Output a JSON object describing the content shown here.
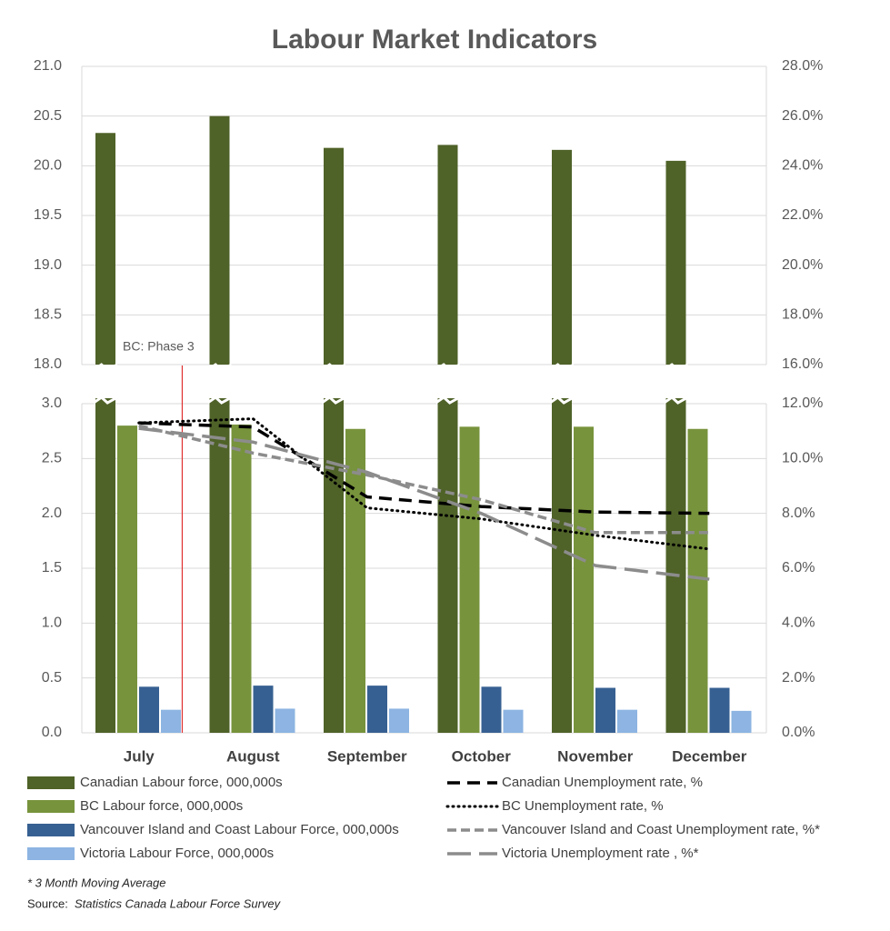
{
  "chart_data": {
    "type": "bar",
    "title": "Labour Market Indicators",
    "annotation": "BC: Phase 3",
    "note": "* 3 Month Moving Average",
    "source_label": "Source:",
    "source": "Statistics Canada Labour Force Survey",
    "categories": [
      "July",
      "August",
      "September",
      "October",
      "November",
      "December"
    ],
    "ylim_upper": [
      18,
      21
    ],
    "yticks_upper": [
      {
        "value": 18,
        "label": "18.0"
      },
      18.5,
      {
        "value": 19,
        "label": "19.0"
      },
      19.5,
      {
        "value": 20,
        "label": "20.0"
      },
      20.5,
      {
        "value": 21,
        "label": "21.0"
      }
    ],
    "y2lim_upper": [
      16,
      28
    ],
    "y2ticks_upper": [
      {
        "value": 16,
        "label": "16.0%"
      },
      {
        "value": 18,
        "label": "18.0%"
      },
      {
        "value": 20,
        "label": "20.0%"
      },
      {
        "value": 22,
        "label": "22.0%"
      },
      {
        "value": 24,
        "label": "24.0%"
      },
      {
        "value": 26,
        "label": "26.0%"
      },
      {
        "value": 28,
        "label": "28.0%"
      }
    ],
    "ylim": [
      0,
      3
    ],
    "yticks": [
      {
        "value": 0,
        "label": "0.0"
      },
      0.5,
      {
        "value": 1,
        "label": "1.0"
      },
      1.5,
      {
        "value": 2,
        "label": "2.0"
      },
      2.5,
      {
        "value": 3,
        "label": "3.0"
      }
    ],
    "y2lim": [
      0,
      12
    ],
    "y2ticks": [
      {
        "value": 0,
        "label": "0.0%"
      },
      {
        "value": 2,
        "label": "2.0%"
      },
      {
        "value": 4,
        "label": "4.0%"
      },
      {
        "value": 6,
        "label": "6.0%"
      },
      {
        "value": 8,
        "label": "8.0%"
      },
      {
        "value": 10,
        "label": "10.0%"
      },
      {
        "value": 12,
        "label": "12.0%"
      }
    ],
    "grid": true,
    "series": [
      {
        "name": "Canadian Labour force, 000,000s",
        "type": "bar",
        "color": "#4f6228",
        "values": [
          20.33,
          20.5,
          20.18,
          20.21,
          20.16,
          20.05
        ]
      },
      {
        "name": "BC Labour force, 000,000s",
        "type": "bar",
        "color": "#77933c",
        "values": [
          2.8,
          2.81,
          2.77,
          2.79,
          2.79,
          2.77
        ]
      },
      {
        "name": "Vancouver Island and Coast Labour Force, 000,000s",
        "type": "bar",
        "color": "#376092",
        "values": [
          0.42,
          0.43,
          0.43,
          0.42,
          0.41,
          0.41
        ]
      },
      {
        "name": "Victoria Labour Force, 000,000s",
        "type": "bar",
        "color": "#8db4e2",
        "values": [
          0.21,
          0.22,
          0.22,
          0.21,
          0.21,
          0.2
        ]
      },
      {
        "name": "Canadian Unemployment rate, %",
        "type": "line",
        "axis": "y2",
        "style": "dashed",
        "color": "#000000",
        "values": [
          11.3,
          11.15,
          8.6,
          8.25,
          8.05,
          8.0
        ]
      },
      {
        "name": "BC Unemployment rate, %",
        "type": "line",
        "axis": "y2",
        "style": "dotted",
        "color": "#000000",
        "values": [
          11.3,
          11.45,
          8.2,
          7.8,
          7.2,
          6.7
        ]
      },
      {
        "name": "Vancouver Island and Coast Unemployment rate, %*",
        "type": "line",
        "axis": "y2",
        "style": "short-dash",
        "color": "#8c8c8c",
        "values": [
          11.2,
          10.2,
          9.4,
          8.5,
          7.3,
          7.3
        ]
      },
      {
        "name": "Victoria Unemployment rate , %*",
        "type": "line",
        "axis": "y2",
        "style": "long-dash",
        "color": "#8c8c8c",
        "values": [
          11.1,
          10.6,
          9.5,
          8.0,
          6.1,
          5.6
        ]
      }
    ]
  }
}
